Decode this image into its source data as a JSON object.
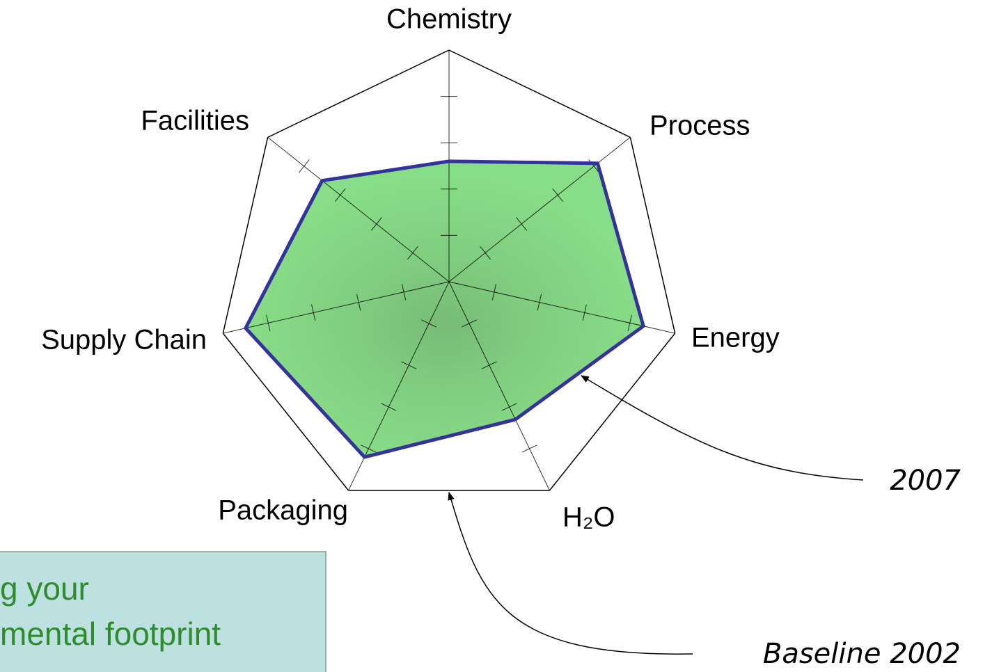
{
  "chart_data": {
    "type": "radar",
    "categories": [
      "Chemistry",
      "Process",
      "Energy",
      "H₂O",
      "Packaging",
      "Supply Chain",
      "Facilities"
    ],
    "rlim": [
      0,
      5
    ],
    "rticks": [
      1,
      2,
      3,
      4
    ],
    "series": [
      {
        "name": "Baseline 2002",
        "color": "#000000",
        "values": [
          5,
          5,
          5,
          5,
          5,
          5,
          5
        ]
      },
      {
        "name": "2007",
        "color": "#333399",
        "fill": "#88dd88",
        "values": [
          2.6,
          4.1,
          4.3,
          3.3,
          4.2,
          4.5,
          3.5
        ]
      }
    ]
  },
  "callout": {
    "lines": [
      "g your",
      "mental footprint"
    ]
  }
}
